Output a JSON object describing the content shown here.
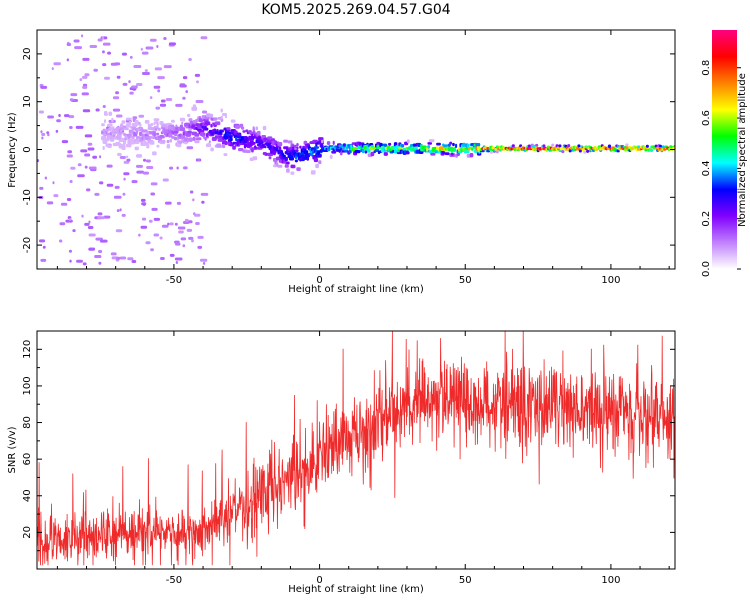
{
  "title": "KOM5.2025.269.04.57.G04",
  "chart_data": [
    {
      "type": "heatmap",
      "name": "spectrogram",
      "xlabel": "Height of straight line (km)",
      "ylabel": "Frequency (Hz)",
      "xlim": [
        -97,
        122
      ],
      "ylim": [
        -25,
        25
      ],
      "xticks": [
        -50,
        0,
        50,
        100
      ],
      "xtick_labels": [
        "-50",
        "0",
        "50",
        "100"
      ],
      "yticks": [
        -20,
        -10,
        0,
        10,
        20
      ],
      "ytick_labels": [
        "-20",
        "-10",
        "0",
        "10",
        "20"
      ],
      "colorbar": {
        "label": "Normalized spectral amplitude",
        "range": [
          0,
          0.95
        ],
        "ticks": [
          0.0,
          0.2,
          0.4,
          0.6,
          0.8
        ],
        "tick_labels": [
          "0.0",
          "0.2",
          "0.4",
          "0.6",
          "0.8"
        ],
        "colors": [
          "#ffffff",
          "#c080ff",
          "#8000ff",
          "#0000ff",
          "#00ffff",
          "#00ff00",
          "#ffff00",
          "#ff8000",
          "#ff0000",
          "#ff0080"
        ]
      },
      "ridge": {
        "x": [
          -70,
          -60,
          -50,
          -40,
          -35,
          -30,
          -25,
          -20,
          -15,
          -10,
          -5,
          0,
          5,
          10,
          20,
          30,
          40,
          50,
          55,
          70,
          90,
          110,
          122
        ],
        "freq": [
          3.5,
          3,
          3.5,
          4.5,
          3.5,
          2.5,
          2,
          1,
          -0.5,
          -1.5,
          -1,
          0.3,
          0.3,
          0.2,
          0.2,
          0.2,
          0.2,
          0.2,
          0.2,
          0.2,
          0.2,
          0.2,
          0.2
        ],
        "amplitude": [
          0.1,
          0.12,
          0.15,
          0.25,
          0.3,
          0.35,
          0.3,
          0.3,
          0.3,
          0.35,
          0.4,
          0.4,
          0.45,
          0.55,
          0.6,
          0.6,
          0.65,
          0.65,
          0.85,
          0.9,
          0.9,
          0.9,
          0.9
        ]
      }
    },
    {
      "type": "line",
      "name": "snr",
      "xlabel": "Height of straight line (km)",
      "ylabel": "SNR (v/v)",
      "xlim": [
        -97,
        122
      ],
      "ylim": [
        0,
        130
      ],
      "xticks": [
        -50,
        0,
        50,
        100
      ],
      "xtick_labels": [
        "-50",
        "0",
        "50",
        "100"
      ],
      "yticks": [
        20,
        40,
        60,
        80,
        100,
        120
      ],
      "ytick_labels": [
        "20",
        "40",
        "60",
        "80",
        "100",
        "120"
      ],
      "color": "#ee2a2a",
      "trend": {
        "x": [
          -97,
          -80,
          -60,
          -45,
          -38,
          -30,
          -22,
          -10,
          0,
          10,
          20,
          30,
          40,
          50,
          60,
          80,
          100,
          122
        ],
        "y": [
          15,
          17,
          20,
          18,
          22,
          30,
          38,
          50,
          60,
          70,
          78,
          88,
          95,
          92,
          90,
          87,
          85,
          80
        ]
      }
    }
  ]
}
